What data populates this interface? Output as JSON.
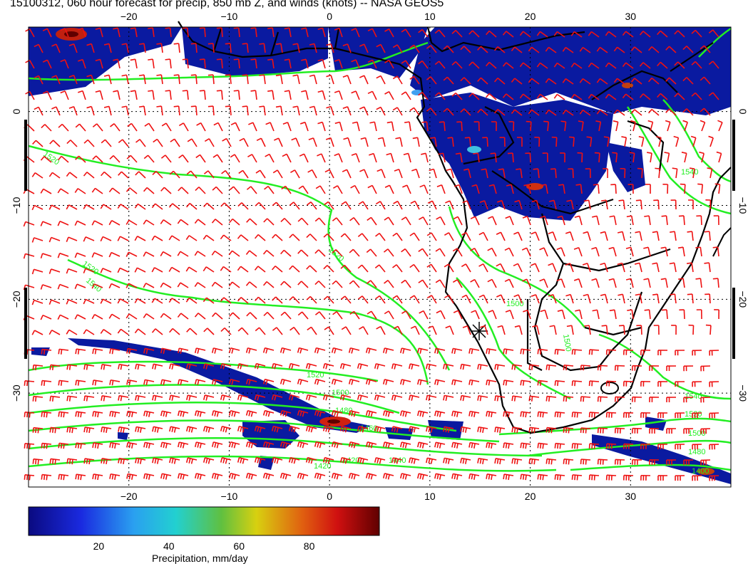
{
  "title": "15100312, 060 hour forecast for precip, 850 mb Z, and winds (knots) -- NASA GEOS5",
  "axes": {
    "lon_ticks": [
      {
        "value": -20,
        "label": "−20"
      },
      {
        "value": -10,
        "label": "−10"
      },
      {
        "value": 0,
        "label": "0"
      },
      {
        "value": 10,
        "label": "10"
      },
      {
        "value": 20,
        "label": "20"
      },
      {
        "value": 30,
        "label": "30"
      }
    ],
    "lat_ticks": [
      {
        "value": 0,
        "label": "0"
      },
      {
        "value": -10,
        "label": "−10"
      },
      {
        "value": -20,
        "label": "−20"
      },
      {
        "value": -30,
        "label": "−30"
      }
    ],
    "lon_range": [
      -30,
      40
    ],
    "lat_range": [
      -40,
      9
    ],
    "grid": "dotted"
  },
  "contour_labels": [
    "1520",
    "1520",
    "1540",
    "1500",
    "1520",
    "1540",
    "1520",
    "1500",
    "1480",
    "1460",
    "1420",
    "1440",
    "1420",
    "1400",
    "1520",
    "1500",
    "1480",
    "1540",
    "1500"
  ],
  "colorbar": {
    "ticks": [
      {
        "value": 20,
        "label": "20"
      },
      {
        "value": 40,
        "label": "40"
      },
      {
        "value": 60,
        "label": "60"
      },
      {
        "value": 80,
        "label": "80"
      }
    ],
    "range": [
      0,
      100
    ],
    "label": "Precipitation, mm/day"
  },
  "colors": {
    "precip_low": "#0a1aa0",
    "contour": "#22ee22",
    "barb": "#ee1111",
    "coast": "#000000"
  }
}
